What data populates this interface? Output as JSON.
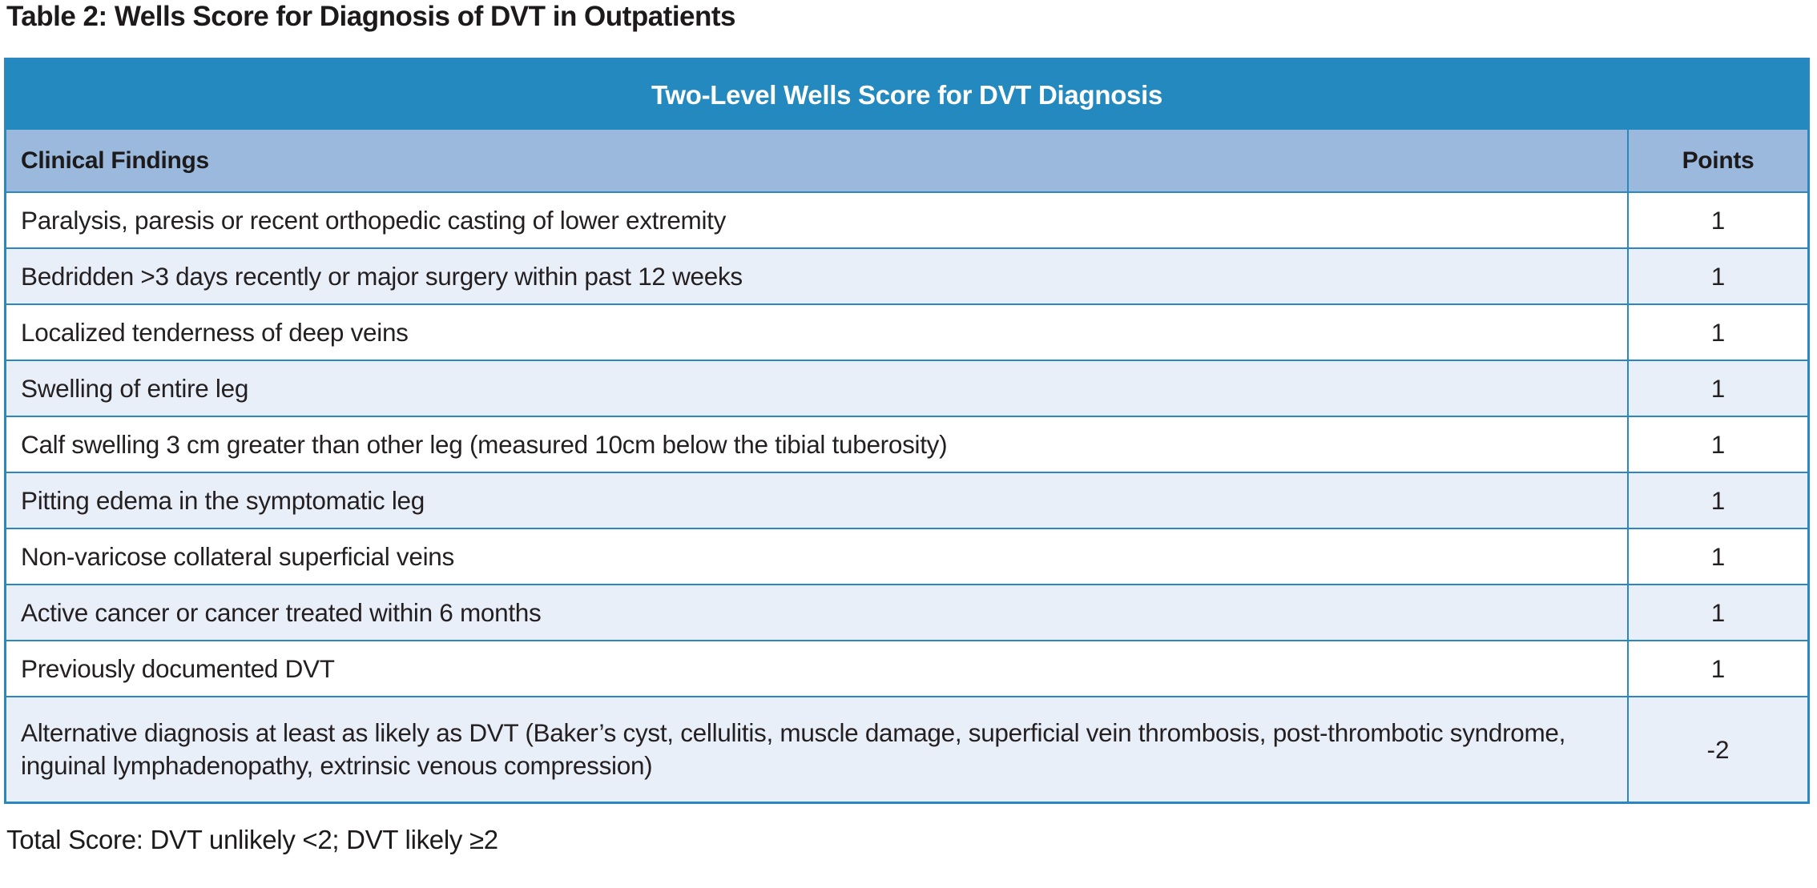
{
  "page": {
    "title": "Table 2: Wells Score for Diagnosis of DVT in Outpatients",
    "footer_note": "Total Score: DVT unlikely <2; DVT likely ≥2"
  },
  "table": {
    "header": "Two-Level Wells Score for DVT Diagnosis",
    "columns": {
      "findings_label": "Clinical Findings",
      "points_label": "Points"
    },
    "rows": [
      {
        "finding": "Paralysis, paresis or recent orthopedic casting of lower extremity",
        "points": "1"
      },
      {
        "finding": "Bedridden >3 days recently or major surgery within past 12 weeks",
        "points": "1"
      },
      {
        "finding": "Localized tenderness of deep veins",
        "points": "1"
      },
      {
        "finding": "Swelling of entire leg",
        "points": "1"
      },
      {
        "finding": "Calf swelling 3 cm greater than other leg (measured 10cm below the tibial tuberosity)",
        "points": "1"
      },
      {
        "finding": "Pitting edema in the symptomatic leg",
        "points": "1"
      },
      {
        "finding": "Non-varicose collateral superficial veins",
        "points": "1"
      },
      {
        "finding": "Active cancer or cancer treated within 6 months",
        "points": "1"
      },
      {
        "finding": "Previously documented DVT",
        "points": "1"
      },
      {
        "finding": "Alternative diagnosis at least as likely as DVT (Baker’s cyst, cellulitis, muscle damage, superficial vein thrombosis, post-thrombotic syndrome, inguinal lymphadenopathy, extrinsic venous compression)",
        "points": "-2"
      }
    ],
    "colors": {
      "header_bg": "#2389be",
      "header_text": "#ffffff",
      "subheader_bg": "#9ab9dd",
      "row_bg": "#ffffff",
      "row_alt_bg": "#e8eff8",
      "border": "#2b87bf",
      "text": "#241f21"
    }
  }
}
